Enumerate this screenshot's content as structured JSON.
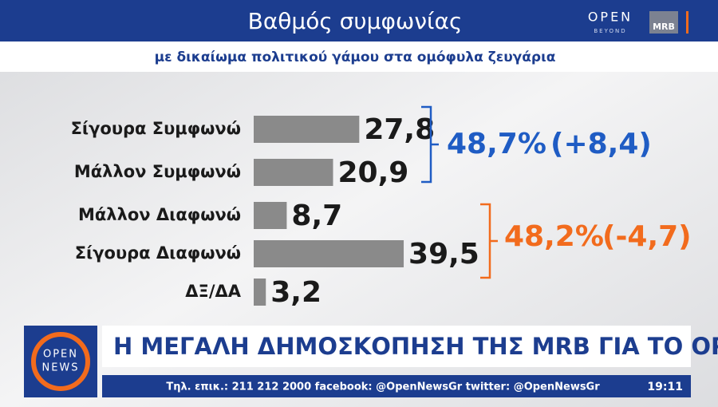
{
  "chart_data": {
    "type": "bar",
    "orientation": "horizontal",
    "title": "Βαθμός συμφωνίας",
    "subtitle": "με δικαίωμα πολιτικού γάμου στα ομόφυλα ζευγάρια",
    "categories": [
      "Σίγουρα Συμφωνώ",
      "Μάλλον Συμφωνώ",
      "Μάλλον Διαφωνώ",
      "Σίγουρα Διαφωνώ",
      "ΔΞ/ΔΑ"
    ],
    "values": [
      27.8,
      20.9,
      8.7,
      39.5,
      3.2
    ],
    "value_labels": [
      "27,8",
      "20,9",
      "8,7",
      "39,5",
      "3,2"
    ],
    "color": "#8a8a8a",
    "annotations": [
      {
        "text": "48,7%",
        "color": "#1f5cc4"
      },
      {
        "text": "(+8,4)",
        "color": "#1f5cc4"
      },
      {
        "text": "48,2%",
        "color": "#f26b1d"
      },
      {
        "text": "(-4,7)",
        "color": "#f26b1d"
      }
    ]
  },
  "broadcast": {
    "channel_logo": "OPEN",
    "channel_tagline": "BEYOND",
    "pollster_logo": "MRB",
    "news_logo_top": "OPEN",
    "news_logo_bottom": "NEWS",
    "headline": "Η ΜΕΓΑΛΗ ΔΗΜΟΣΚΟΠΗΣΗ ΤΗΣ MRB ΓΙΑ ΤΟ OPEN",
    "ticker": "Τηλ. επικ.: 211 212 2000 facebook: @OpenNewsGr twitter: @OpenNewsGr",
    "clock": "19:11"
  }
}
